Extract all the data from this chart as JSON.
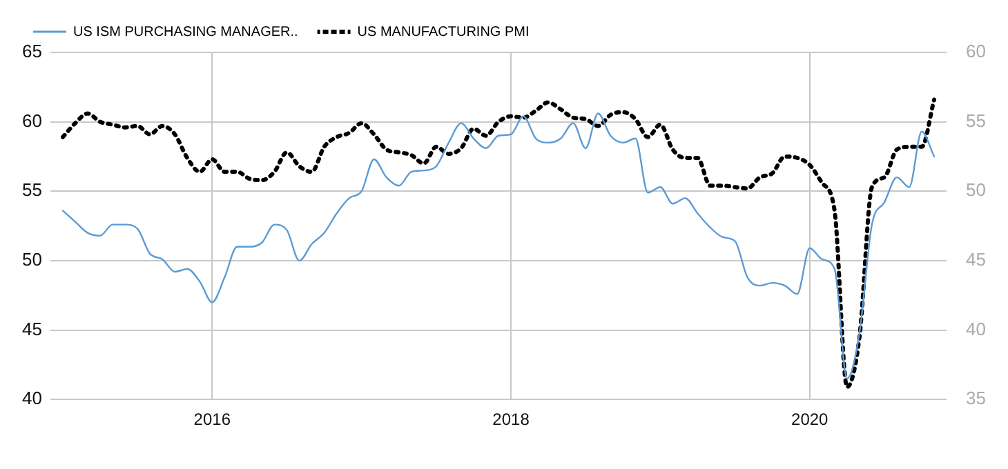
{
  "chart_data": {
    "type": "line",
    "legend": "top left",
    "grid": true,
    "marker": "none",
    "x": [
      "2015-01",
      "2015-02",
      "2015-03",
      "2015-04",
      "2015-05",
      "2015-06",
      "2015-07",
      "2015-08",
      "2015-09",
      "2015-10",
      "2015-11",
      "2015-12",
      "2016-01",
      "2016-02",
      "2016-03",
      "2016-04",
      "2016-05",
      "2016-06",
      "2016-07",
      "2016-08",
      "2016-09",
      "2016-10",
      "2016-11",
      "2016-12",
      "2017-01",
      "2017-02",
      "2017-03",
      "2017-04",
      "2017-05",
      "2017-06",
      "2017-07",
      "2017-08",
      "2017-09",
      "2017-10",
      "2017-11",
      "2017-12",
      "2018-01",
      "2018-02",
      "2018-03",
      "2018-04",
      "2018-05",
      "2018-06",
      "2018-07",
      "2018-08",
      "2018-09",
      "2018-10",
      "2018-11",
      "2018-12",
      "2019-01",
      "2019-02",
      "2019-03",
      "2019-04",
      "2019-05",
      "2019-06",
      "2019-07",
      "2019-08",
      "2019-09",
      "2019-10",
      "2019-11",
      "2019-12",
      "2020-01",
      "2020-02",
      "2020-03",
      "2020-04",
      "2020-05",
      "2020-06",
      "2020-07",
      "2020-08",
      "2020-09",
      "2020-10",
      "2020-11"
    ],
    "xlim": [
      "2014-12",
      "2020-12"
    ],
    "xticks": [
      {
        "value": "2016-01",
        "label": "2016"
      },
      {
        "value": "2018-01",
        "label": "2018"
      },
      {
        "value": "2020-01",
        "label": "2020"
      }
    ],
    "ylim": [
      40,
      65
    ],
    "yticks": [
      40,
      45,
      50,
      55,
      60,
      65
    ],
    "y2lim": [
      35,
      60
    ],
    "y2ticks": [
      35,
      40,
      45,
      50,
      55,
      60
    ],
    "series": [
      {
        "name": "US ISM PURCHASING MANAGER..",
        "color": "#5b9bd5",
        "line_style": "solid",
        "values": [
          53.6,
          52.8,
          52.0,
          51.8,
          52.6,
          52.6,
          52.3,
          50.5,
          50.1,
          49.2,
          49.4,
          48.5,
          47.0,
          48.8,
          51.0,
          51.0,
          51.3,
          52.6,
          52.2,
          50.0,
          51.2,
          52.0,
          53.4,
          54.5,
          55.0,
          57.3,
          56.0,
          55.4,
          56.4,
          56.5,
          56.8,
          58.5,
          59.9,
          58.8,
          58.1,
          59.0,
          59.1,
          60.4,
          58.8,
          58.5,
          58.8,
          59.9,
          58.1,
          60.6,
          59.0,
          58.5,
          58.8,
          54.9,
          55.3,
          54.1,
          54.5,
          53.4,
          52.4,
          51.7,
          51.4,
          48.8,
          48.2,
          48.4,
          48.2,
          47.6,
          50.9,
          50.1,
          49.4,
          41.5,
          44.8,
          52.6,
          54.2,
          56.0,
          55.3,
          59.3,
          57.5
        ]
      },
      {
        "name": "US MANUFACTURING PMI",
        "color": "#000000",
        "line_style": "dotted",
        "axis": "y2",
        "values": [
          53.9,
          54.9,
          55.6,
          55.0,
          54.8,
          54.6,
          54.7,
          54.1,
          54.7,
          54.1,
          52.4,
          51.4,
          52.3,
          51.4,
          51.4,
          50.9,
          50.8,
          51.4,
          52.8,
          51.8,
          51.4,
          53.2,
          53.9,
          54.2,
          54.9,
          54.1,
          53.0,
          52.8,
          52.6,
          52.0,
          53.2,
          52.7,
          53.1,
          54.5,
          54.0,
          55.0,
          55.4,
          55.3,
          55.8,
          56.4,
          55.9,
          55.3,
          55.2,
          54.7,
          55.5,
          55.7,
          55.2,
          53.9,
          54.8,
          53.0,
          52.4,
          52.4,
          50.4,
          50.4,
          50.3,
          50.2,
          51.0,
          51.3,
          52.5,
          52.4,
          51.9,
          50.6,
          48.6,
          35.9,
          39.5,
          50.3,
          51.0,
          53.0,
          53.2,
          53.2,
          56.6
        ]
      }
    ]
  }
}
